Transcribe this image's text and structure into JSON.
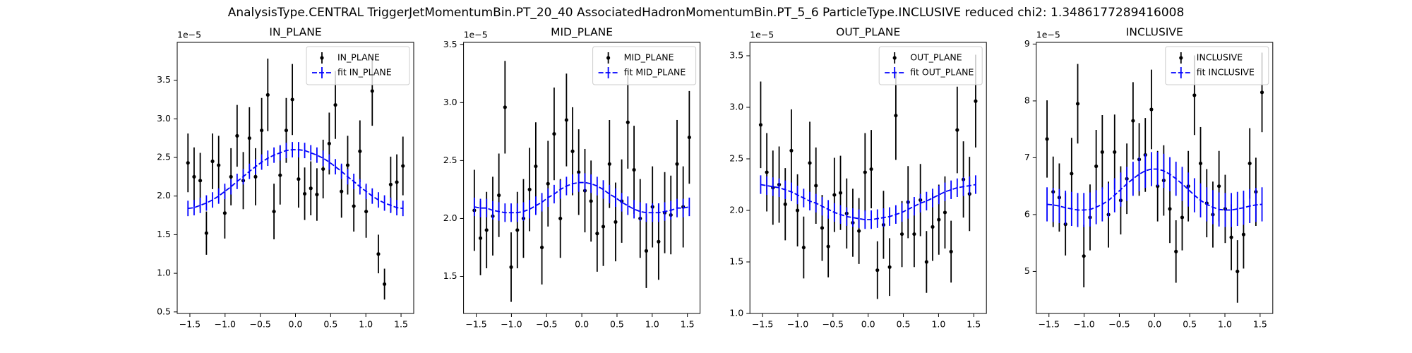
{
  "title": "AnalysisType.CENTRAL TriggerJetMomentumBin.PT_20_40 AssociatedHadronMomentumBin.PT_5_6 ParticleType.INCLUSIVE reduced chi2: 1.3486177289416008",
  "chart_data": [
    {
      "type": "errorbar",
      "title": "IN_PLANE",
      "y_offset_label": "1e−5",
      "legend": "upper right",
      "x": [
        -1.527,
        -1.44,
        -1.353,
        -1.265,
        -1.178,
        -1.091,
        -1.004,
        -0.916,
        -0.829,
        -0.742,
        -0.654,
        -0.567,
        -0.48,
        -0.393,
        -0.305,
        -0.218,
        -0.131,
        -0.044,
        0.044,
        0.131,
        0.218,
        0.305,
        0.393,
        0.48,
        0.567,
        0.654,
        0.742,
        0.829,
        0.916,
        1.004,
        1.091,
        1.178,
        1.265,
        1.353,
        1.44,
        1.527
      ],
      "series": [
        {
          "name": "IN_PLANE",
          "color": "#000000",
          "style": "points",
          "values": [
            2.43,
            2.25,
            2.2,
            1.52,
            2.45,
            2.4,
            1.78,
            2.25,
            2.78,
            2.2,
            2.75,
            2.25,
            2.85,
            3.31,
            1.8,
            2.27,
            2.85,
            3.25,
            2.22,
            2.03,
            2.1,
            2.02,
            2.35,
            2.68,
            3.18,
            2.06,
            2.4,
            1.87,
            2.58,
            1.8,
            3.36,
            1.25,
            0.86,
            2.15,
            2.18,
            2.39
          ],
          "errors": [
            0.38,
            0.38,
            0.36,
            0.28,
            0.36,
            0.38,
            0.33,
            0.37,
            0.4,
            0.37,
            0.4,
            0.37,
            0.42,
            0.47,
            0.36,
            0.38,
            0.42,
            0.46,
            0.37,
            0.34,
            0.35,
            0.34,
            0.38,
            0.4,
            0.44,
            0.34,
            0.38,
            0.33,
            0.4,
            0.34,
            0.45,
            0.25,
            0.2,
            0.36,
            0.36,
            0.38
          ]
        },
        {
          "name": "fit IN_PLANE",
          "color": "#0000ff",
          "style": "dashed",
          "values": [
            1.84,
            1.85,
            1.88,
            1.91,
            1.95,
            2.0,
            2.06,
            2.12,
            2.19,
            2.25,
            2.32,
            2.38,
            2.44,
            2.49,
            2.53,
            2.56,
            2.59,
            2.6,
            2.6,
            2.59,
            2.56,
            2.53,
            2.49,
            2.44,
            2.38,
            2.32,
            2.25,
            2.19,
            2.12,
            2.06,
            2.0,
            1.95,
            1.91,
            1.88,
            1.85,
            1.84
          ],
          "errors": [
            0.1,
            0.1,
            0.1,
            0.1,
            0.1,
            0.1,
            0.1,
            0.1,
            0.1,
            0.1,
            0.1,
            0.1,
            0.1,
            0.1,
            0.1,
            0.1,
            0.1,
            0.1,
            0.1,
            0.1,
            0.1,
            0.1,
            0.1,
            0.1,
            0.1,
            0.1,
            0.1,
            0.1,
            0.1,
            0.1,
            0.1,
            0.1,
            0.1,
            0.1,
            0.1,
            0.1
          ]
        }
      ],
      "xlim": [
        -1.68,
        1.68
      ],
      "ylim": [
        0.48,
        3.99
      ],
      "xticks": [
        {
          "value": -1.5,
          "label": "−1.5"
        },
        {
          "value": -1,
          "label": "−1.0"
        },
        {
          "value": -0.5,
          "label": "−0.5"
        },
        {
          "value": 0,
          "label": "0.0"
        },
        0.5,
        {
          "value": 1,
          "label": "1.0"
        },
        1.5
      ],
      "yticks": [
        0.5,
        {
          "value": 1,
          "label": "1.0"
        },
        1.5,
        {
          "value": 2,
          "label": "2.0"
        },
        2.5,
        {
          "value": 3,
          "label": "3.0"
        },
        3.5
      ]
    },
    {
      "type": "errorbar",
      "title": "MID_PLANE",
      "y_offset_label": "1e−5",
      "legend": "upper right",
      "x": [
        -1.527,
        -1.44,
        -1.353,
        -1.265,
        -1.178,
        -1.091,
        -1.004,
        -0.916,
        -0.829,
        -0.742,
        -0.654,
        -0.567,
        -0.48,
        -0.393,
        -0.305,
        -0.218,
        -0.131,
        -0.044,
        0.044,
        0.131,
        0.218,
        0.305,
        0.393,
        0.48,
        0.567,
        0.654,
        0.742,
        0.829,
        0.916,
        1.004,
        1.091,
        1.178,
        1.265,
        1.353,
        1.44,
        1.527
      ],
      "series": [
        {
          "name": "MID_PLANE",
          "color": "#000000",
          "style": "points",
          "values": [
            2.07,
            1.83,
            1.9,
            2.02,
            2.2,
            2.96,
            1.58,
            1.9,
            2.0,
            2.25,
            2.45,
            1.75,
            2.3,
            2.73,
            2.0,
            2.85,
            2.58,
            2.4,
            2.24,
            2.15,
            1.87,
            1.93,
            2.47,
            1.97,
            2.15,
            2.83,
            2.42,
            2.0,
            1.72,
            2.1,
            1.8,
            2.05,
            2.03,
            2.47,
            2.1,
            2.7
          ],
          "errors": [
            0.35,
            0.32,
            0.33,
            0.34,
            0.36,
            0.4,
            0.3,
            0.33,
            0.34,
            0.36,
            0.38,
            0.32,
            0.37,
            0.4,
            0.34,
            0.4,
            0.38,
            0.37,
            0.36,
            0.35,
            0.33,
            0.34,
            0.38,
            0.34,
            0.36,
            0.4,
            0.38,
            0.34,
            0.32,
            0.35,
            0.33,
            0.35,
            0.34,
            0.38,
            0.35,
            0.4
          ]
        },
        {
          "name": "fit MID_PLANE",
          "color": "#0000ff",
          "style": "dashed",
          "values": [
            2.1,
            2.09,
            2.09,
            2.07,
            2.06,
            2.05,
            2.05,
            2.05,
            2.06,
            2.08,
            2.11,
            2.14,
            2.18,
            2.21,
            2.25,
            2.28,
            2.3,
            2.31,
            2.31,
            2.3,
            2.28,
            2.25,
            2.21,
            2.18,
            2.14,
            2.11,
            2.08,
            2.06,
            2.05,
            2.05,
            2.05,
            2.06,
            2.07,
            2.09,
            2.09,
            2.1
          ],
          "errors": [
            0.08,
            0.08,
            0.08,
            0.08,
            0.08,
            0.08,
            0.08,
            0.08,
            0.08,
            0.08,
            0.08,
            0.08,
            0.08,
            0.08,
            0.08,
            0.08,
            0.08,
            0.08,
            0.08,
            0.08,
            0.08,
            0.08,
            0.08,
            0.08,
            0.08,
            0.08,
            0.08,
            0.08,
            0.08,
            0.08,
            0.08,
            0.08,
            0.08,
            0.08,
            0.08,
            0.08
          ]
        }
      ],
      "xlim": [
        -1.68,
        1.68
      ],
      "ylim": [
        1.18,
        3.52
      ],
      "xticks": [
        {
          "value": -1.5,
          "label": "−1.5"
        },
        {
          "value": -1,
          "label": "−1.0"
        },
        {
          "value": -0.5,
          "label": "−0.5"
        },
        {
          "value": 0,
          "label": "0.0"
        },
        0.5,
        {
          "value": 1,
          "label": "1.0"
        },
        1.5
      ],
      "yticks": [
        1.5,
        {
          "value": 2,
          "label": "2.0"
        },
        2.5,
        {
          "value": 3,
          "label": "3.0"
        },
        3.5
      ]
    },
    {
      "type": "errorbar",
      "title": "OUT_PLANE",
      "y_offset_label": "1e−5",
      "legend": "upper right",
      "x": [
        -1.527,
        -1.44,
        -1.353,
        -1.265,
        -1.178,
        -1.091,
        -1.004,
        -0.916,
        -0.829,
        -0.742,
        -0.654,
        -0.567,
        -0.48,
        -0.393,
        -0.305,
        -0.218,
        -0.131,
        -0.044,
        0.044,
        0.131,
        0.218,
        0.305,
        0.393,
        0.48,
        0.567,
        0.654,
        0.742,
        0.829,
        0.916,
        1.004,
        1.091,
        1.178,
        1.265,
        1.353,
        1.44,
        1.527
      ],
      "series": [
        {
          "name": "OUT_PLANE",
          "color": "#000000",
          "style": "points",
          "values": [
            2.83,
            2.37,
            2.22,
            2.25,
            2.06,
            2.58,
            2.0,
            1.64,
            2.46,
            2.24,
            1.83,
            1.65,
            2.15,
            2.17,
            1.97,
            1.88,
            1.8,
            2.37,
            2.4,
            1.42,
            1.86,
            1.45,
            2.92,
            1.77,
            2.08,
            1.77,
            2.1,
            1.5,
            1.84,
            1.91,
            1.98,
            1.6,
            2.78,
            2.3,
            2.16,
            3.06
          ],
          "errors": [
            0.42,
            0.38,
            0.36,
            0.37,
            0.35,
            0.4,
            0.35,
            0.3,
            0.4,
            0.37,
            0.32,
            0.3,
            0.36,
            0.36,
            0.34,
            0.33,
            0.32,
            0.38,
            0.38,
            0.28,
            0.33,
            0.28,
            0.43,
            0.32,
            0.35,
            0.32,
            0.35,
            0.3,
            0.33,
            0.34,
            0.35,
            0.3,
            0.42,
            0.37,
            0.36,
            0.45
          ]
        },
        {
          "name": "fit OUT_PLANE",
          "color": "#0000ff",
          "style": "dashed",
          "values": [
            2.25,
            2.24,
            2.23,
            2.22,
            2.2,
            2.18,
            2.15,
            2.12,
            2.09,
            2.07,
            2.04,
            2.01,
            1.98,
            1.96,
            1.94,
            1.93,
            1.92,
            1.91,
            1.91,
            1.92,
            1.93,
            1.94,
            1.96,
            1.98,
            2.01,
            2.04,
            2.07,
            2.09,
            2.12,
            2.15,
            2.18,
            2.2,
            2.22,
            2.23,
            2.24,
            2.25
          ],
          "errors": [
            0.09,
            0.09,
            0.09,
            0.09,
            0.09,
            0.09,
            0.09,
            0.09,
            0.09,
            0.09,
            0.09,
            0.09,
            0.09,
            0.09,
            0.09,
            0.09,
            0.09,
            0.09,
            0.09,
            0.09,
            0.09,
            0.09,
            0.09,
            0.09,
            0.09,
            0.09,
            0.09,
            0.09,
            0.09,
            0.09,
            0.09,
            0.09,
            0.09,
            0.09,
            0.09,
            0.09
          ]
        }
      ],
      "xlim": [
        -1.68,
        1.68
      ],
      "ylim": [
        1.0,
        3.63
      ],
      "xticks": [
        {
          "value": -1.5,
          "label": "−1.5"
        },
        {
          "value": -1,
          "label": "−1.0"
        },
        {
          "value": -0.5,
          "label": "−0.5"
        },
        {
          "value": 0,
          "label": "0.0"
        },
        0.5,
        {
          "value": 1,
          "label": "1.0"
        },
        1.5
      ],
      "yticks": [
        {
          "value": 1,
          "label": "1.0"
        },
        1.5,
        {
          "value": 2,
          "label": "2.0"
        },
        2.5,
        {
          "value": 3,
          "label": "3.0"
        },
        3.5
      ]
    },
    {
      "type": "errorbar",
      "title": "INCLUSIVE",
      "y_offset_label": "1e−5",
      "legend": "upper right",
      "x": [
        -1.527,
        -1.44,
        -1.353,
        -1.265,
        -1.178,
        -1.091,
        -1.004,
        -0.916,
        -0.829,
        -0.742,
        -0.654,
        -0.567,
        -0.48,
        -0.393,
        -0.305,
        -0.218,
        -0.131,
        -0.044,
        0.044,
        0.131,
        0.218,
        0.305,
        0.393,
        0.48,
        0.567,
        0.654,
        0.742,
        0.829,
        0.916,
        1.004,
        1.091,
        1.178,
        1.265,
        1.353,
        1.44,
        1.527
      ],
      "series": [
        {
          "name": "INCLUSIVE",
          "color": "#000000",
          "style": "points",
          "values": [
            7.33,
            6.4,
            6.3,
            5.83,
            6.72,
            7.95,
            5.27,
            5.95,
            6.85,
            7.1,
            6.0,
            7.1,
            6.25,
            6.63,
            7.65,
            6.97,
            7.05,
            7.85,
            6.5,
            6.6,
            6.1,
            5.35,
            5.95,
            6.5,
            8.1,
            6.9,
            6.2,
            6.0,
            6.5,
            6.1,
            5.6,
            5.0,
            5.65,
            6.9,
            6.4,
            8.15
          ],
          "errors": [
            0.68,
            0.62,
            0.6,
            0.55,
            0.63,
            0.7,
            0.55,
            0.58,
            0.64,
            0.65,
            0.58,
            0.66,
            0.6,
            0.62,
            0.68,
            0.64,
            0.65,
            0.7,
            0.62,
            0.62,
            0.6,
            0.55,
            0.58,
            0.62,
            0.7,
            0.64,
            0.6,
            0.58,
            0.62,
            0.6,
            0.58,
            0.55,
            0.6,
            0.62,
            0.6,
            0.7
          ]
        },
        {
          "name": "fit INCLUSIVE",
          "color": "#0000ff",
          "style": "dashed",
          "values": [
            6.18,
            6.17,
            6.15,
            6.12,
            6.1,
            6.08,
            6.08,
            6.09,
            6.13,
            6.18,
            6.25,
            6.34,
            6.44,
            6.54,
            6.63,
            6.71,
            6.77,
            6.8,
            6.8,
            6.77,
            6.71,
            6.63,
            6.54,
            6.44,
            6.34,
            6.25,
            6.18,
            6.13,
            6.09,
            6.08,
            6.08,
            6.1,
            6.12,
            6.15,
            6.17,
            6.18
          ],
          "errors": [
            0.3,
            0.3,
            0.3,
            0.3,
            0.3,
            0.3,
            0.3,
            0.3,
            0.3,
            0.3,
            0.3,
            0.3,
            0.3,
            0.3,
            0.3,
            0.3,
            0.3,
            0.3,
            0.3,
            0.3,
            0.3,
            0.3,
            0.3,
            0.3,
            0.3,
            0.3,
            0.3,
            0.3,
            0.3,
            0.3,
            0.3,
            0.3,
            0.3,
            0.3,
            0.3,
            0.3
          ]
        }
      ],
      "xlim": [
        -1.68,
        1.68
      ],
      "ylim": [
        4.26,
        9.03
      ],
      "xticks": [
        {
          "value": -1.5,
          "label": "−1.5"
        },
        {
          "value": -1,
          "label": "−1.0"
        },
        {
          "value": -0.5,
          "label": "−0.5"
        },
        {
          "value": 0,
          "label": "0.0"
        },
        0.5,
        {
          "value": 1,
          "label": "1.0"
        },
        1.5
      ],
      "yticks": [
        5,
        6,
        7,
        8,
        9
      ]
    }
  ]
}
